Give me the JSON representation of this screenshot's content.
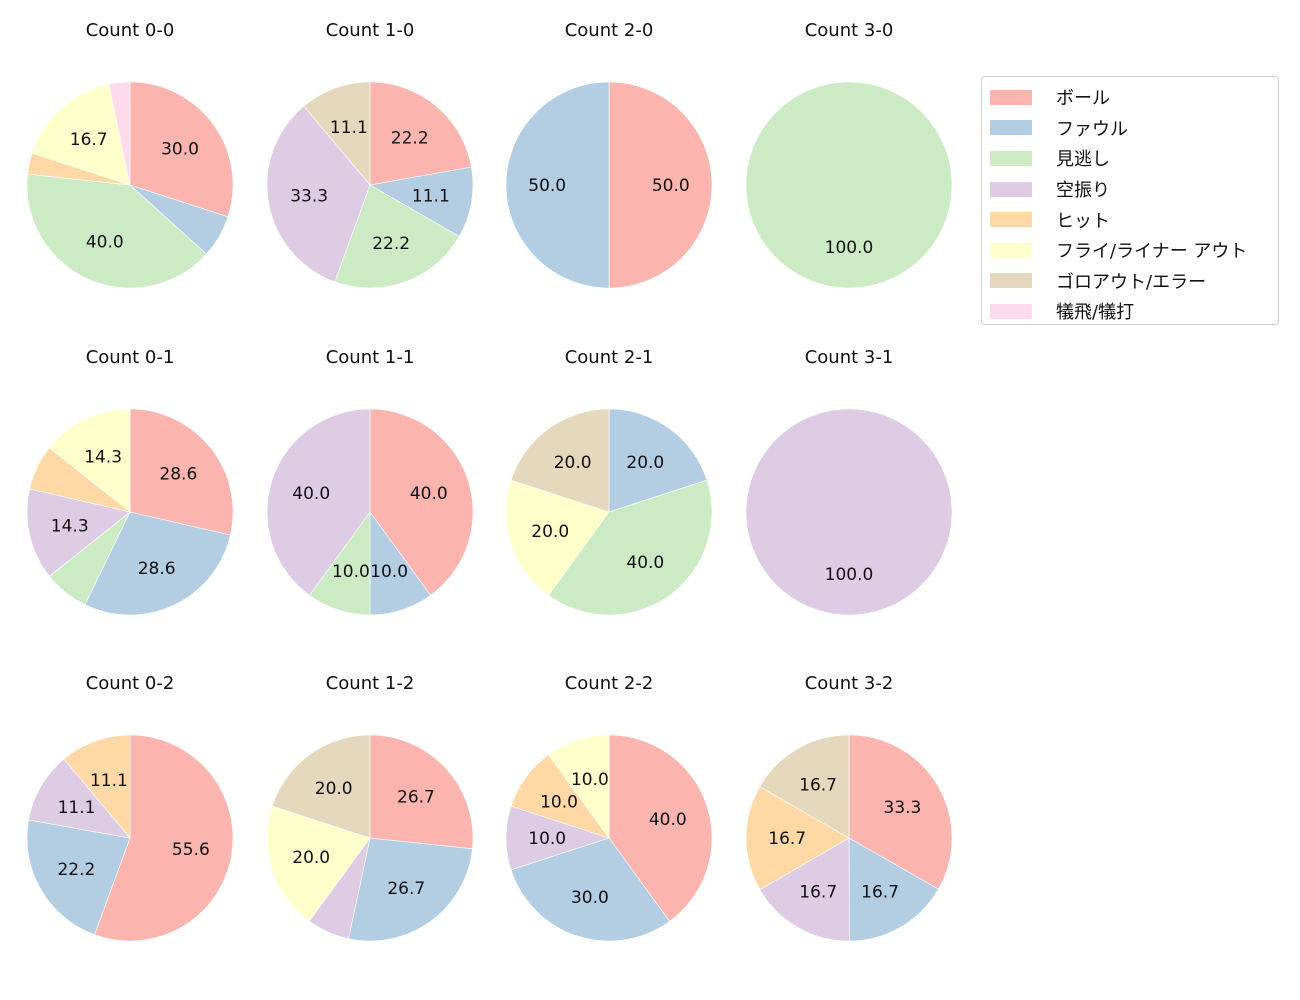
{
  "legend": {
    "items": [
      {
        "label": "ボール",
        "color": "#fbb4ae"
      },
      {
        "label": "ファウル",
        "color": "#b3cde3"
      },
      {
        "label": "見逃し",
        "color": "#ccebc5"
      },
      {
        "label": "空振り",
        "color": "#decbe4"
      },
      {
        "label": "ヒット",
        "color": "#fed9a6"
      },
      {
        "label": "フライ/ライナー アウト",
        "color": "#ffffcc"
      },
      {
        "label": "ゴロアウト/エラー",
        "color": "#e5d8bd"
      },
      {
        "label": "犠飛/犠打",
        "color": "#fddaec"
      }
    ]
  },
  "chart_data": [
    {
      "type": "pie",
      "title": "Count 0-0",
      "categories": [
        "ボール",
        "ファウル",
        "見逃し",
        "ヒット",
        "フライ/ライナー アウト",
        "犠飛/犠打"
      ],
      "values": [
        30.0,
        6.7,
        40.0,
        3.3,
        16.7,
        3.3
      ],
      "labels_shown": [
        "30.0",
        "",
        "40.0",
        "",
        "16.7",
        ""
      ]
    },
    {
      "type": "pie",
      "title": "Count 1-0",
      "categories": [
        "ボール",
        "ファウル",
        "見逃し",
        "空振り",
        "ゴロアウト/エラー"
      ],
      "values": [
        22.2,
        11.1,
        22.2,
        33.3,
        11.1
      ],
      "labels_shown": [
        "22.2",
        "11.1",
        "22.2",
        "33.3",
        "11.1"
      ]
    },
    {
      "type": "pie",
      "title": "Count 2-0",
      "categories": [
        "ボール",
        "ファウル"
      ],
      "values": [
        50.0,
        50.0
      ],
      "labels_shown": [
        "50.0",
        "50.0"
      ]
    },
    {
      "type": "pie",
      "title": "Count 3-0",
      "categories": [
        "見逃し"
      ],
      "values": [
        100.0
      ],
      "labels_shown": [
        "100.0"
      ]
    },
    {
      "type": "pie",
      "title": "Count 0-1",
      "categories": [
        "ボール",
        "ファウル",
        "見逃し",
        "空振り",
        "ヒット",
        "フライ/ライナー アウト"
      ],
      "values": [
        28.6,
        28.6,
        7.1,
        14.3,
        7.1,
        14.3
      ],
      "labels_shown": [
        "28.6",
        "28.6",
        "",
        "14.3",
        "",
        "14.3"
      ]
    },
    {
      "type": "pie",
      "title": "Count 1-1",
      "categories": [
        "ボール",
        "ファウル",
        "見逃し",
        "空振り"
      ],
      "values": [
        40.0,
        10.0,
        10.0,
        40.0
      ],
      "labels_shown": [
        "40.0",
        "10.0",
        "10.0",
        "40.0"
      ]
    },
    {
      "type": "pie",
      "title": "Count 2-1",
      "categories": [
        "ファウル",
        "見逃し",
        "フライ/ライナー アウト",
        "ゴロアウト/エラー"
      ],
      "values": [
        20.0,
        40.0,
        20.0,
        20.0
      ],
      "labels_shown": [
        "20.0",
        "40.0",
        "20.0",
        "20.0"
      ]
    },
    {
      "type": "pie",
      "title": "Count 3-1",
      "categories": [
        "空振り"
      ],
      "values": [
        100.0
      ],
      "labels_shown": [
        "100.0"
      ]
    },
    {
      "type": "pie",
      "title": "Count 0-2",
      "categories": [
        "ボール",
        "ファウル",
        "空振り",
        "ヒット"
      ],
      "values": [
        55.6,
        22.2,
        11.1,
        11.1
      ],
      "labels_shown": [
        "55.6",
        "22.2",
        "11.1",
        "11.1"
      ]
    },
    {
      "type": "pie",
      "title": "Count 1-2",
      "categories": [
        "ボール",
        "ファウル",
        "空振り",
        "フライ/ライナー アウト",
        "ゴロアウト/エラー"
      ],
      "values": [
        26.7,
        26.7,
        6.7,
        20.0,
        20.0
      ],
      "labels_shown": [
        "26.7",
        "26.7",
        "",
        "20.0",
        "20.0"
      ]
    },
    {
      "type": "pie",
      "title": "Count 2-2",
      "categories": [
        "ボール",
        "ファウル",
        "空振り",
        "ヒット",
        "フライ/ライナー アウト"
      ],
      "values": [
        40.0,
        30.0,
        10.0,
        10.0,
        10.0
      ],
      "labels_shown": [
        "40.0",
        "30.0",
        "10.0",
        "10.0",
        "10.0"
      ]
    },
    {
      "type": "pie",
      "title": "Count 3-2",
      "categories": [
        "ボール",
        "ファウル",
        "空振り",
        "ヒット",
        "ゴロアウト/エラー"
      ],
      "values": [
        33.3,
        16.7,
        16.7,
        16.7,
        16.7
      ],
      "labels_shown": [
        "33.3",
        "16.7",
        "16.7",
        "16.7",
        "16.7"
      ]
    }
  ]
}
